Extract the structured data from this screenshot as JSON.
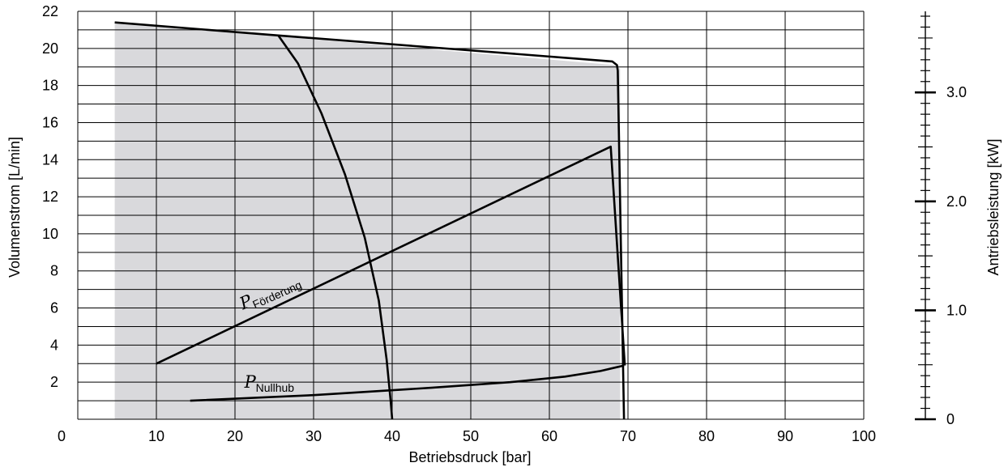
{
  "chart_data": {
    "type": "line",
    "xlabel": "Betriebsdruck [bar]",
    "ylabel": "Volumenstrom [L/min]",
    "y2label": "Antriebsleistung [kW]",
    "xlim": [
      0,
      100
    ],
    "ylim": [
      0,
      22
    ],
    "y2lim": [
      0,
      3.7
    ],
    "x_ticks": [
      0,
      10,
      20,
      30,
      40,
      50,
      60,
      70,
      80,
      90,
      100
    ],
    "y_ticks": [
      2,
      4,
      6,
      8,
      10,
      12,
      14,
      16,
      18,
      20,
      22
    ],
    "y2_ticks": [
      0,
      1.0,
      2.0,
      3.0
    ],
    "y2_tick_labels": [
      "0",
      "1.0",
      "2.0",
      "3.0"
    ],
    "grid": true,
    "shaded_region": {
      "x": [
        4.7,
        68.3,
        69.0,
        69.0,
        4.7
      ],
      "y": [
        21.4,
        19.1,
        18.9,
        0,
        0
      ],
      "color": "#d9d9dc"
    },
    "series": [
      {
        "x": [
          4.7,
          25.5,
          68.0,
          68.6,
          68.7,
          69.5
        ],
        "y": [
          21.4,
          20.7,
          19.3,
          19.1,
          18.8,
          0
        ]
      },
      {
        "x": [
          25.5,
          28.0,
          31.0,
          34.0,
          36.5,
          38.3,
          39.3,
          39.8,
          40.0
        ],
        "y": [
          20.7,
          19.2,
          16.5,
          13.2,
          9.8,
          6.4,
          3.2,
          1.0,
          0
        ]
      },
      {
        "x": [
          10.0,
          67.8,
          69.6
        ],
        "y": [
          3.0,
          14.7,
          2.9
        ]
      },
      {
        "x": [
          14.3,
          30.0,
          45.0,
          55.0,
          62.0,
          66.5,
          69.5
        ],
        "y": [
          1.0,
          1.3,
          1.7,
          2.0,
          2.3,
          2.6,
          2.9
        ]
      }
    ],
    "annotations": [
      {
        "main": "P",
        "sub": "Förderung",
        "x": 21.0,
        "y": 5.9,
        "rotate": -24
      },
      {
        "main": "P",
        "sub": "Nullhub",
        "x": 21.2,
        "y": 1.7,
        "rotate": 0
      }
    ]
  }
}
